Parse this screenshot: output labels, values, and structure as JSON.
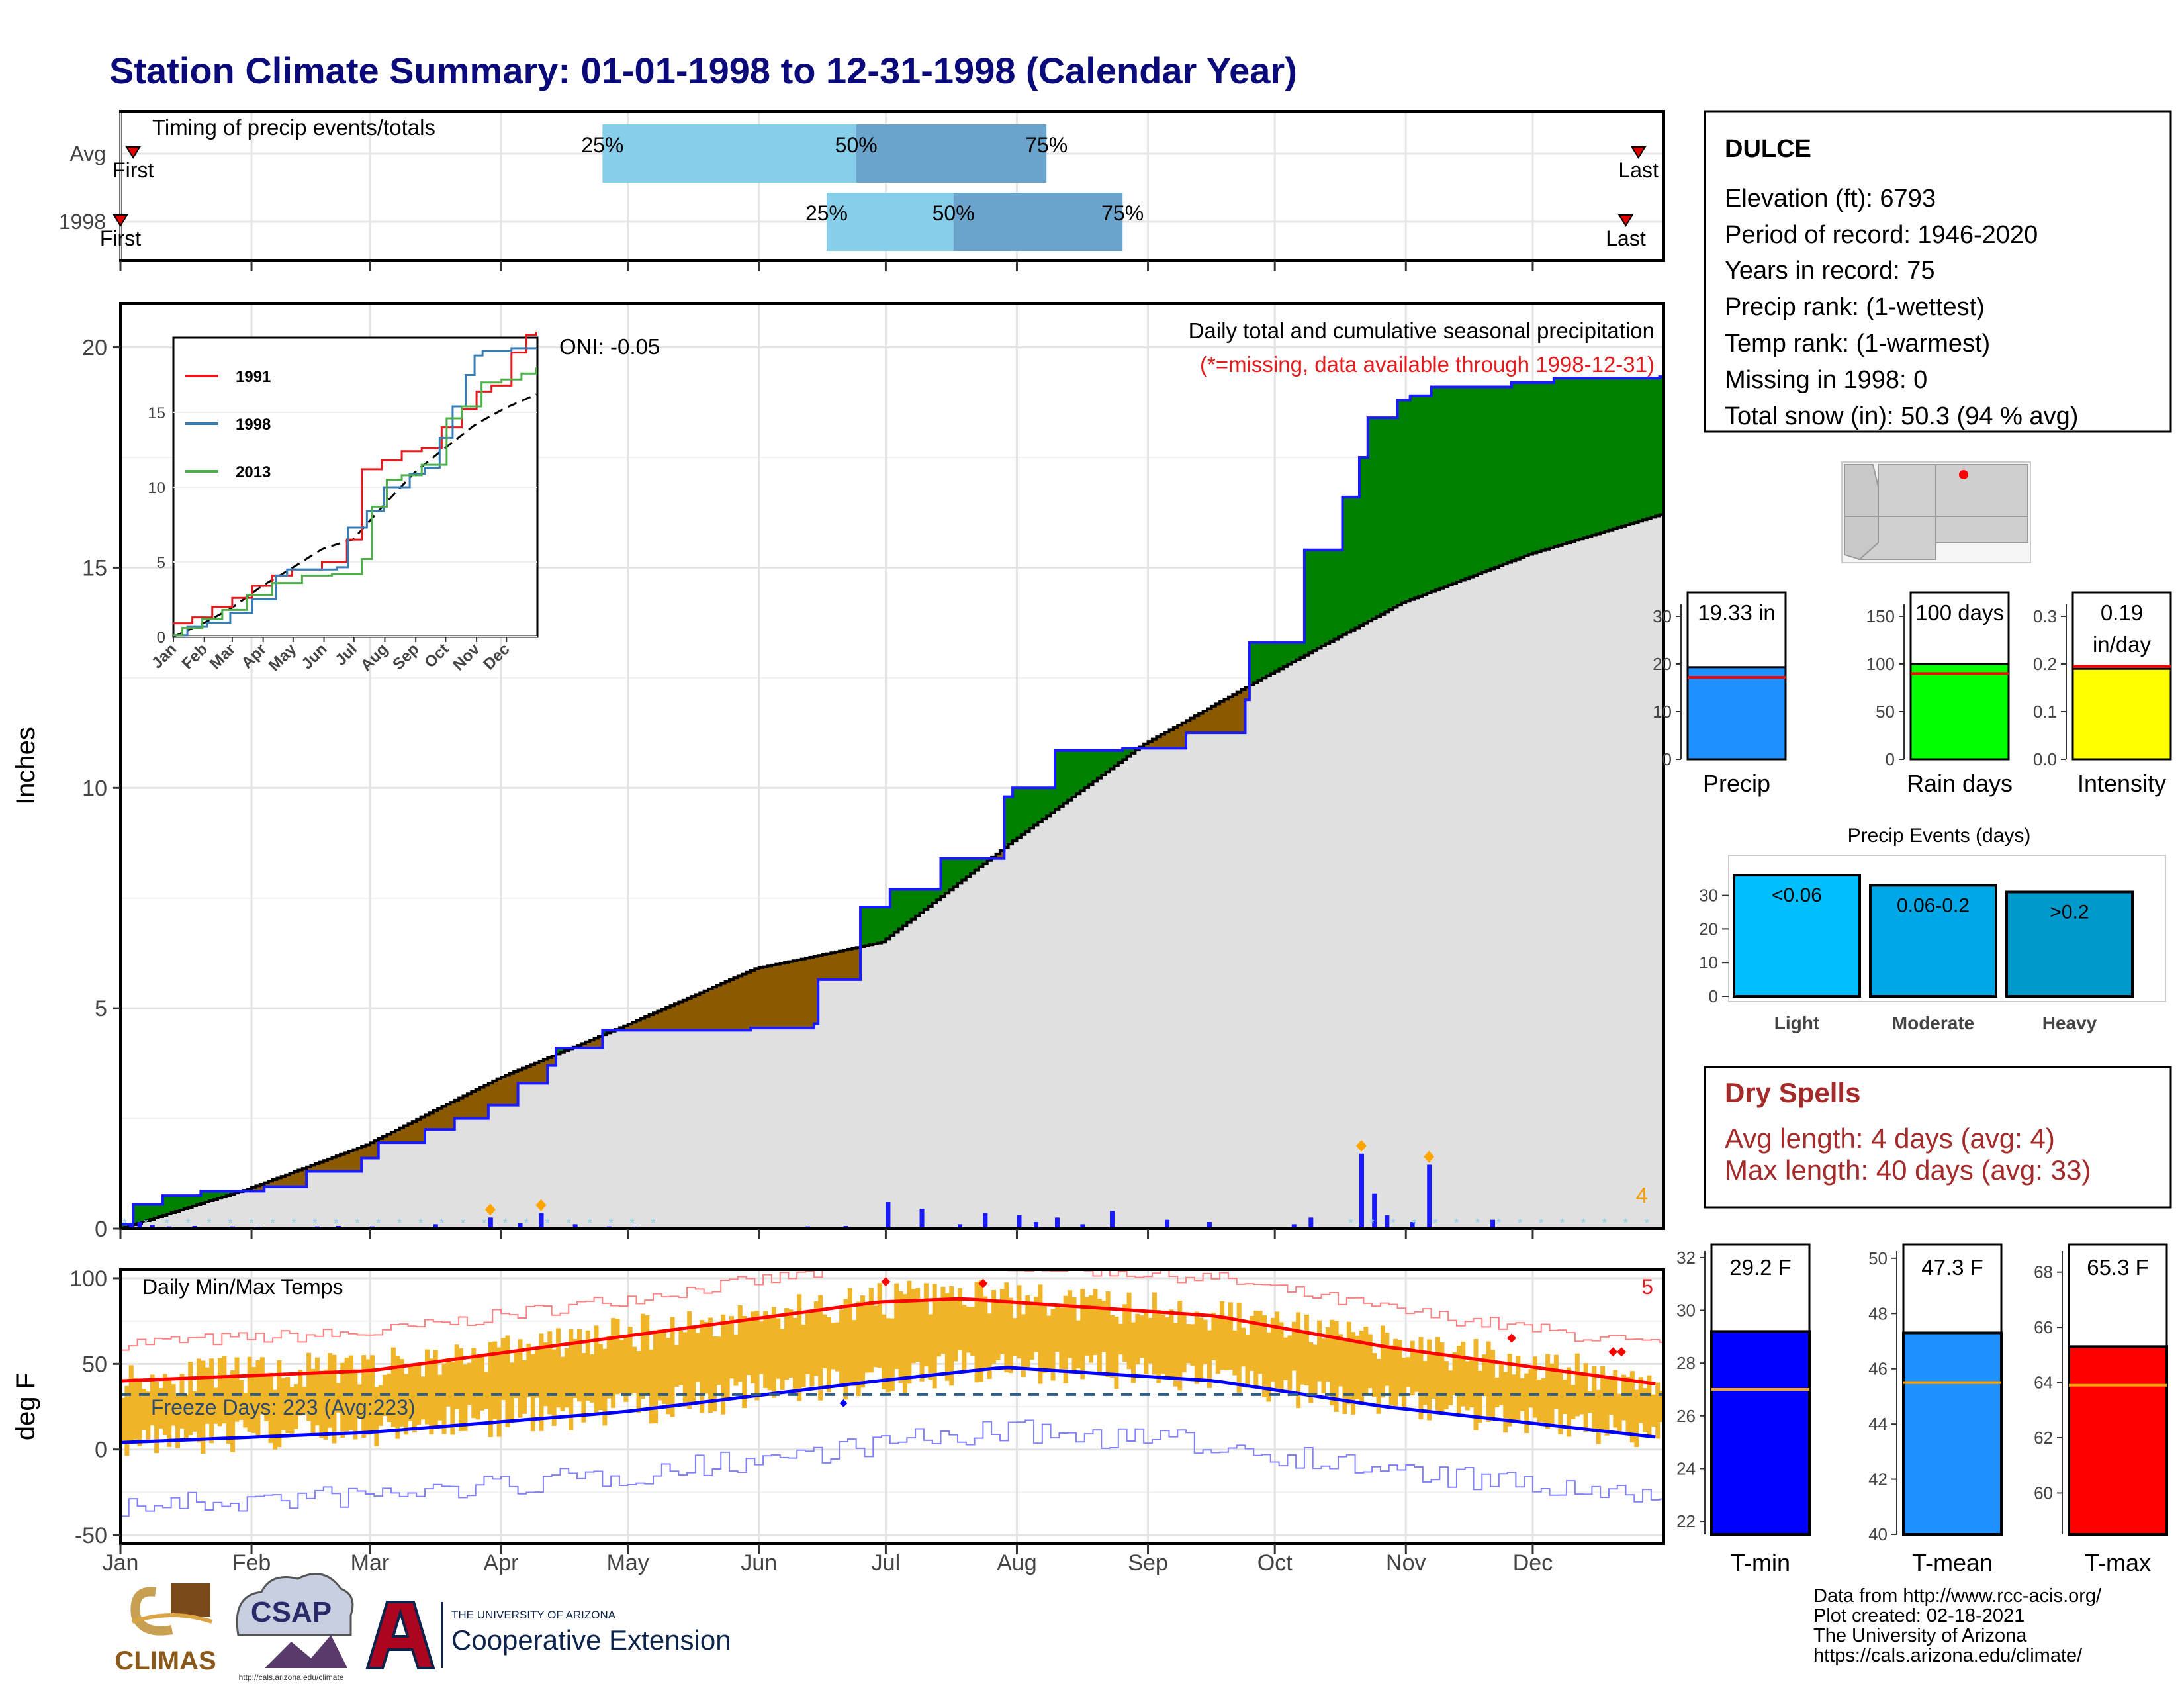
{
  "page_title": "Station Climate Summary: 01-01-1998 to 12-31-1998 (Calendar Year)",
  "colors": {
    "title": "#0a0a7a",
    "observed_fill": "#e0e0e0",
    "wetter_fill": "#008000",
    "drier_fill": "#8b5a00",
    "line_1998": "#1a1aff",
    "red": "#e41a1c",
    "blue": "#377eb8",
    "green": "#4daf4a",
    "light_blue": "#87ceeb",
    "mid_blue": "#6aa3cc",
    "temp_bar": "#f0b429",
    "precip_bar": "#1e90ff",
    "rain_bar": "#00ff00",
    "intensity_bar": "#ffff00",
    "event_light": "#00bfff",
    "event_moderate": "#00a7e6",
    "event_heavy": "#0099cc",
    "tmin_bar": "#0000ff",
    "tmean_bar": "#1e90ff",
    "tmax_bar": "#ff0000",
    "dry_spell": "#a52a2a"
  },
  "timing_panel": {
    "title": "Timing of precip events/totals",
    "rows": [
      {
        "label": "Avg",
        "q25": 115,
        "q50": 175,
        "q75": 220,
        "first_label": "First",
        "last_label": "Last",
        "first_day": 4,
        "last_day": 360
      },
      {
        "label": "1998",
        "q25": 168,
        "q50": 198,
        "q75": 238,
        "first_label": "First",
        "last_label": "Last",
        "first_day": 1,
        "last_day": 357
      }
    ],
    "q_labels": [
      "25%",
      "50%",
      "75%"
    ]
  },
  "main_panel": {
    "y_label": "Inches",
    "y_ticks": [
      0,
      5,
      10,
      15,
      20
    ],
    "ylim": [
      0,
      21
    ],
    "title": "Daily total and cumulative seasonal precipitation",
    "subtitle": "(*=missing, data available through 1998-12-31)",
    "oni_label": "ONI: -0.05",
    "corner_count": "4"
  },
  "inset": {
    "legend": [
      "1991",
      "1998",
      "2013"
    ],
    "y_ticks": [
      "0",
      "5",
      "10",
      "15"
    ],
    "x_ticks": [
      "Jan",
      "Feb",
      "Mar",
      "Apr",
      "May",
      "Jun",
      "Jul",
      "Aug",
      "Sep",
      "Oct",
      "Nov",
      "Dec"
    ]
  },
  "temp_panel": {
    "title": "Daily Min/Max Temps",
    "y_label": "deg F",
    "y_ticks": [
      "100",
      "50",
      "0",
      "-50"
    ],
    "freeze_label": "Freeze Days: 223 (Avg:223)",
    "corner_count": "5"
  },
  "months": [
    "Jan",
    "Feb",
    "Mar",
    "Apr",
    "May",
    "Jun",
    "Jul",
    "Aug",
    "Sep",
    "Oct",
    "Nov",
    "Dec"
  ],
  "station": {
    "name": "DULCE",
    "lines": [
      "Elevation (ft): 6793",
      "Period of record: 1946-2020",
      "Years in record: 75",
      "Precip rank:  (1-wettest)",
      "Temp rank:  (1-warmest)",
      "Missing in 1998: 0",
      "Total snow (in): 50.3 (94 % avg)"
    ]
  },
  "small_bars": [
    {
      "label": "Precip",
      "value_label": "19.33 in",
      "value": 19.33,
      "avg": 17.2,
      "ylim": [
        0,
        35
      ],
      "ticks": [
        "0",
        "10",
        "20",
        "30"
      ],
      "tick_values": [
        0,
        10,
        20,
        30
      ]
    },
    {
      "label": "Rain days",
      "value_label": "100 days",
      "value": 100,
      "avg": 90,
      "ylim": [
        0,
        175
      ],
      "ticks": [
        "0",
        "50",
        "100",
        "150"
      ],
      "tick_values": [
        0,
        50,
        100,
        150
      ]
    },
    {
      "label": "Intensity",
      "value_label_1": "0.19",
      "value_label_2": "in/day",
      "value": 0.19,
      "avg": 0.195,
      "ylim": [
        0,
        0.35
      ],
      "ticks": [
        "0.0",
        "0.1",
        "0.2",
        "0.3"
      ],
      "tick_values": [
        0,
        0.1,
        0.2,
        0.3
      ]
    }
  ],
  "events": {
    "title": "Precip Events (days)",
    "categories": [
      "Light",
      "Moderate",
      "Heavy"
    ],
    "values": [
      36,
      33,
      31
    ],
    "value_labels": [
      "<0.06",
      "0.06-0.2",
      ">0.2"
    ],
    "ticks": [
      "0",
      "10",
      "20",
      "30"
    ]
  },
  "dry_spells": {
    "title": "Dry Spells",
    "avg_line": "Avg length: 4 days (avg: 4)",
    "max_line": "Max length: 40 days (avg: 33)"
  },
  "temp_bars": [
    {
      "label": "T-min",
      "value_label": "29.2 F",
      "value": 29.2,
      "avg": 27.0,
      "ylim": [
        21.5,
        32.5
      ],
      "ticks": [
        "22",
        "24",
        "26",
        "28",
        "30",
        "32"
      ]
    },
    {
      "label": "T-mean",
      "value_label": "47.3 F",
      "value": 47.3,
      "avg": 45.5,
      "ylim": [
        40,
        50.5
      ],
      "ticks": [
        "40",
        "42",
        "44",
        "46",
        "48",
        "50"
      ]
    },
    {
      "label": "T-max",
      "value_label": "65.3 F",
      "value": 65.3,
      "avg": 63.9,
      "ylim": [
        58.5,
        69
      ],
      "ticks": [
        "60",
        "62",
        "64",
        "66",
        "68"
      ]
    }
  ],
  "credits": [
    "Data from http://www.rcc-acis.org/",
    "Plot created: 02-18-2021",
    "The University of Arizona",
    "https://cals.arizona.edu/climate/"
  ],
  "logos": {
    "climas": "CLIMAS",
    "csap": "CSAP",
    "csap_url": "http://cals.arizona.edu/climate",
    "ua_line1": "THE UNIVERSITY OF ARIZONA",
    "ua_line2": "Cooperative Extension"
  },
  "chart_data": [
    {
      "type": "area",
      "title": "Daily total and cumulative seasonal precipitation",
      "ylabel": "Inches",
      "ylim": [
        0,
        21
      ],
      "x_unit": "day of year",
      "series": [
        {
          "name": "1998",
          "x": [
            1,
            4,
            11,
            20,
            35,
            45,
            58,
            62,
            73,
            80,
            88,
            95,
            102,
            104,
            115,
            150,
            165,
            166,
            176,
            183,
            195,
            210,
            212,
            222,
            238,
            253,
            267,
            268,
            281,
            290,
            294,
            296,
            303,
            306,
            311,
            330,
            340,
            365
          ],
          "values": [
            0.1,
            0.55,
            0.75,
            0.85,
            0.95,
            1.3,
            1.6,
            1.95,
            2.25,
            2.5,
            2.8,
            3.3,
            3.7,
            4.1,
            4.5,
            4.55,
            4.65,
            5.65,
            7.3,
            7.7,
            8.4,
            9.8,
            10.0,
            10.85,
            10.9,
            11.25,
            12.0,
            13.3,
            15.4,
            16.6,
            17.5,
            18.4,
            18.8,
            18.9,
            19.1,
            19.2,
            19.3,
            19.33
          ]
        },
        {
          "name": "average",
          "x": [
            1,
            31,
            59,
            90,
            120,
            151,
            181,
            212,
            243,
            273,
            304,
            334,
            365
          ],
          "values": [
            0.0,
            0.9,
            1.9,
            3.4,
            4.6,
            5.9,
            6.5,
            8.8,
            11.0,
            12.6,
            14.2,
            15.3,
            16.2
          ]
        }
      ],
      "daily_precip": {
        "x": [
          3,
          5,
          8,
          12,
          18,
          27,
          33,
          47,
          52,
          60,
          75,
          88,
          95,
          100,
          108,
          116,
          122,
          163,
          172,
          182,
          190,
          199,
          205,
          213,
          217,
          222,
          228,
          235,
          248,
          258,
          278,
          282,
          294,
          297,
          300,
          306,
          310,
          325
        ],
        "values": [
          0.1,
          0.15,
          0.08,
          0.05,
          0.06,
          0.05,
          0.04,
          0.05,
          0.06,
          0.05,
          0.1,
          0.25,
          0.12,
          0.35,
          0.1,
          0.05,
          0.04,
          0.05,
          0.06,
          0.6,
          0.45,
          0.1,
          0.35,
          0.3,
          0.15,
          0.25,
          0.1,
          0.4,
          0.2,
          0.15,
          0.1,
          0.25,
          1.7,
          0.8,
          0.3,
          0.15,
          1.45,
          0.2
        ]
      }
    },
    {
      "type": "line",
      "title": "Daily Min/Max Temps",
      "ylabel": "deg F",
      "ylim": [
        -55,
        105
      ],
      "x_unit": "day of year",
      "series": [
        {
          "name": "Avg max",
          "x": [
            1,
            60,
            120,
            180,
            200,
            260,
            300,
            365
          ],
          "values": [
            40,
            46,
            66,
            86,
            88,
            78,
            60,
            38
          ]
        },
        {
          "name": "Avg min",
          "x": [
            1,
            60,
            120,
            180,
            210,
            260,
            300,
            365
          ],
          "values": [
            4,
            10,
            22,
            40,
            48,
            40,
            25,
            7
          ]
        }
      ],
      "freeze_threshold": 32
    }
  ]
}
